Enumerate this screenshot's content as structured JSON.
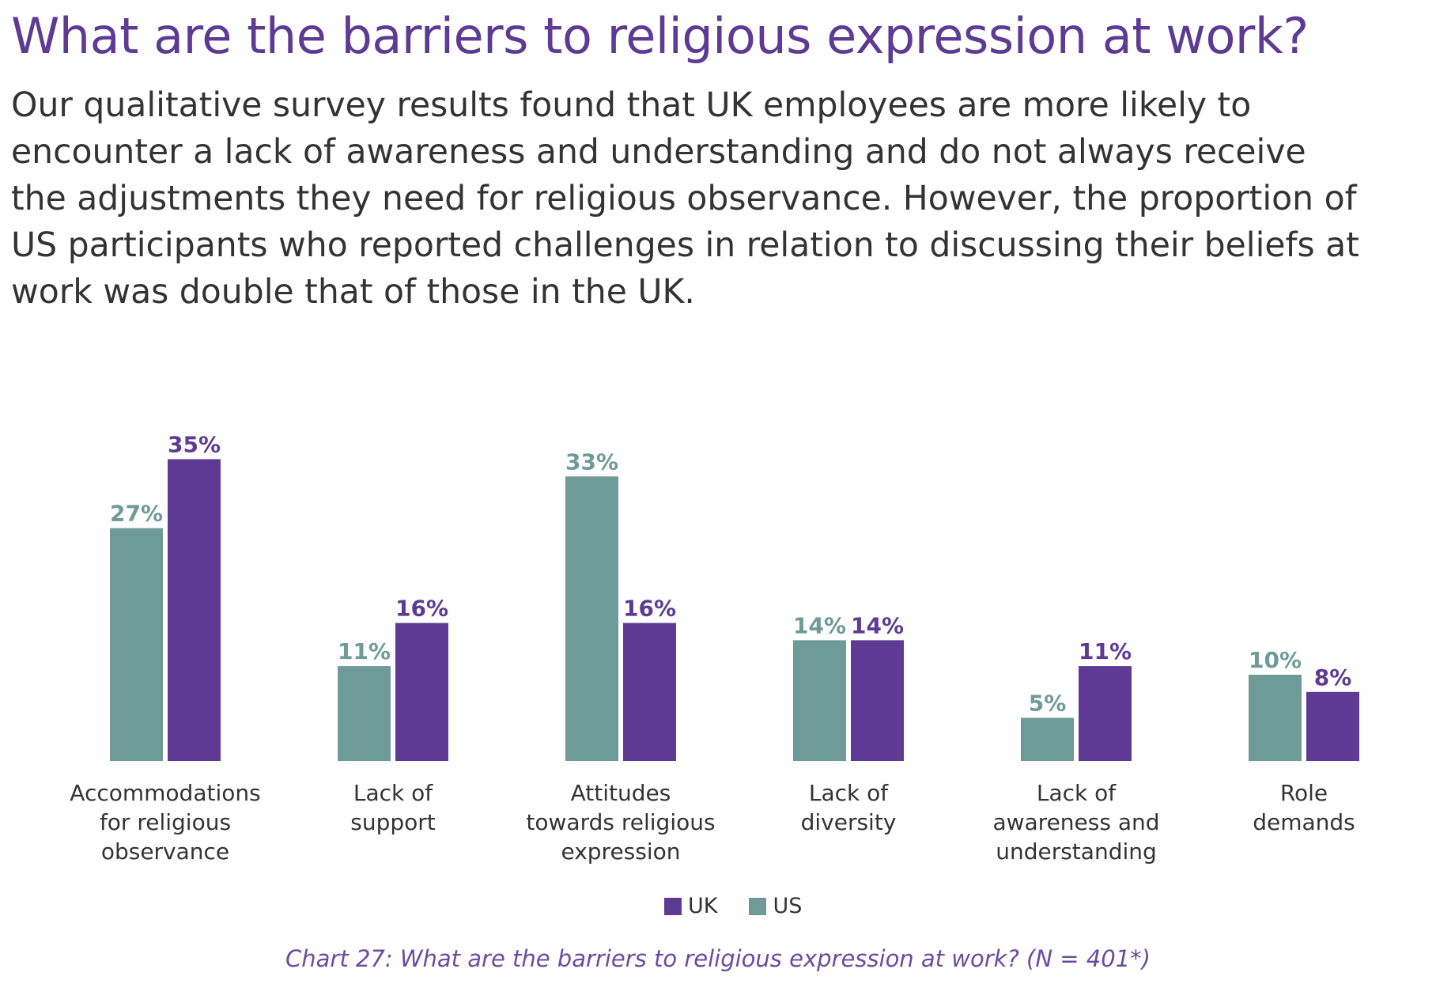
{
  "title": "What are the barriers to religious expression at work?",
  "intro_lines": [
    "Our qualitative survey results found that UK employees are more likely to",
    "encounter a lack of awareness and understanding and do not always receive",
    "the adjustments they need for religious observance. However, the proportion of",
    "US participants who reported challenges in relation to discussing their beliefs at",
    "work was double that of those in the UK."
  ],
  "colors": {
    "uk": "#5e3a95",
    "us": "#6e9a97",
    "title": "#5e3a95",
    "text": "#333333"
  },
  "chart_data": {
    "type": "bar",
    "title": "What are the barriers to religious expression at work?",
    "xlabel": "",
    "ylabel": "",
    "ylim": [
      0,
      35
    ],
    "grid": false,
    "legend_position": "bottom-center",
    "value_suffix": "%",
    "categories": [
      "Accommodations for religious observance",
      "Lack of support",
      "Attitudes towards religious expression",
      "Lack of diversity",
      "Lack of awareness and understanding",
      "Role demands"
    ],
    "category_label_lines": [
      [
        "Accommodations",
        "for religious",
        "observance"
      ],
      [
        "Lack of",
        "support"
      ],
      [
        "Attitudes",
        "towards religious",
        "expression"
      ],
      [
        "Lack of",
        "diversity"
      ],
      [
        "Lack of",
        "awareness and",
        "understanding"
      ],
      [
        "Role",
        "demands"
      ]
    ],
    "series": [
      {
        "name": "US",
        "values": [
          27,
          11,
          33,
          14,
          5,
          10
        ]
      },
      {
        "name": "UK",
        "values": [
          35,
          16,
          16,
          14,
          11,
          8
        ]
      }
    ]
  },
  "legend": [
    {
      "name": "UK"
    },
    {
      "name": "US"
    }
  ],
  "caption": "Chart 27: What are the barriers to religious expression at work? (N = 401*)"
}
